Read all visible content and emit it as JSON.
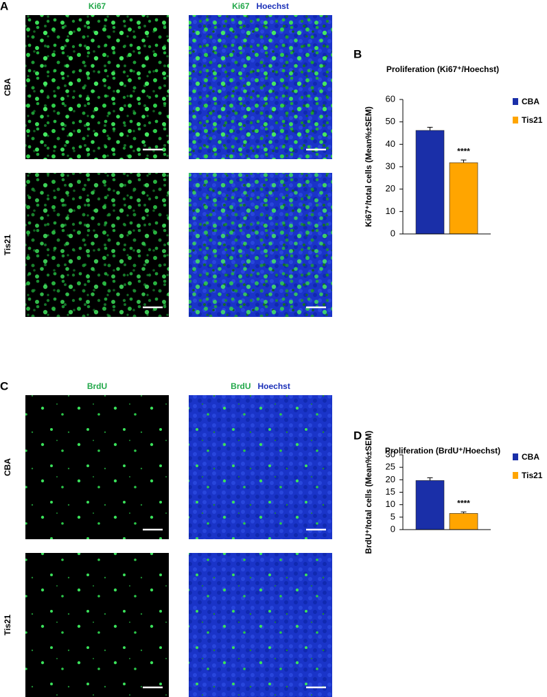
{
  "panels": [
    {
      "letter": "A",
      "columns": [
        [
          "Ki67"
        ],
        [
          "Ki67",
          "Hoechst"
        ]
      ],
      "rows": [
        "CBA",
        "Tis21"
      ]
    },
    {
      "letter": "C",
      "columns": [
        [
          "BrdU"
        ],
        [
          "BrdU",
          "Hoechst"
        ]
      ],
      "rows": [
        "CBA",
        "Tis21"
      ]
    }
  ],
  "chart_letters": [
    "B",
    "D"
  ],
  "chart_data": [
    {
      "type": "bar",
      "title": "Proliferation (Ki67⁺/Hoechst)",
      "ylabel": "Ki67⁺/total cells (Mean%±SEM)",
      "series": [
        {
          "name": "CBA",
          "color": "#1a2fa8",
          "values": [
            46.2
          ],
          "errors": [
            1.4
          ]
        },
        {
          "name": "Tis21",
          "color": "#ffa500",
          "values": [
            31.8
          ],
          "errors": [
            1.2
          ]
        }
      ],
      "annotation": "****",
      "ylim": [
        0,
        60
      ],
      "yticks": [
        0,
        10,
        20,
        30,
        40,
        50,
        60
      ],
      "grid": false
    },
    {
      "type": "bar",
      "title": "Proliferation (BrdU⁺/Hoechst)",
      "ylabel": "BrdU⁺/total cells (Mean%±SEM)",
      "series": [
        {
          "name": "CBA",
          "color": "#1a2fa8",
          "values": [
            19.7
          ],
          "errors": [
            1.1
          ]
        },
        {
          "name": "Tis21",
          "color": "#ffa500",
          "values": [
            6.5
          ],
          "errors": [
            0.6
          ]
        }
      ],
      "annotation": "****",
      "ylim": [
        0,
        30
      ],
      "yticks": [
        0,
        5,
        10,
        15,
        20,
        25,
        30
      ],
      "grid": false
    }
  ]
}
